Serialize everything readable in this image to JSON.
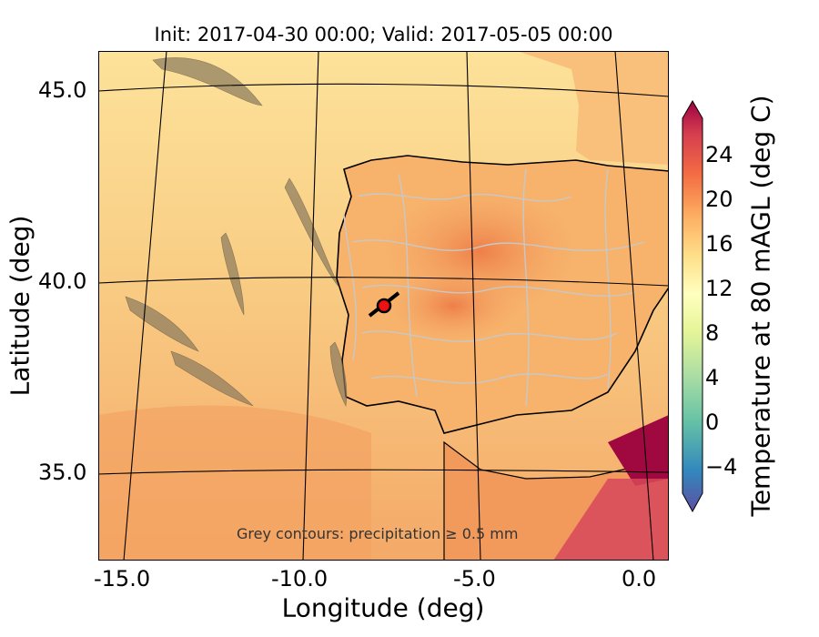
{
  "title": "Init: 2017-04-30 00:00; Valid: 2017-05-05 00:00",
  "xlabel": "Longitude (deg)",
  "ylabel": "Latitude (deg)",
  "x_ticks": [
    "-15.0",
    "-10.0",
    "-5.0",
    "0.0"
  ],
  "y_ticks": [
    "45.0",
    "40.0",
    "35.0"
  ],
  "colorbar": {
    "label": "Temperature at 80 mAGL (deg C)",
    "ticks": [
      "24",
      "20",
      "16",
      "12",
      "8",
      "4",
      "0",
      "−4"
    ],
    "min": -8,
    "max": 28,
    "extend": "both",
    "colormap": [
      "#5e4fa2",
      "#3288bd",
      "#66c2a5",
      "#abdda4",
      "#e6f598",
      "#ffffbf",
      "#fee08b",
      "#fdae61",
      "#f46d43",
      "#d53e4f",
      "#9e0142"
    ]
  },
  "annotation": "Grey contours: precipitation ≥ 0.5 mm",
  "marker": {
    "name": "site",
    "lon": -7.6,
    "lat": 39.3,
    "color": "#ee1111"
  },
  "colors": {
    "sea": "#f7c884",
    "sea_warm": "#f5b06a",
    "land": "#f4a866",
    "land_hot": "#ee8047",
    "contour": "#c8c8c8",
    "hot_corner": "#a00840"
  }
}
